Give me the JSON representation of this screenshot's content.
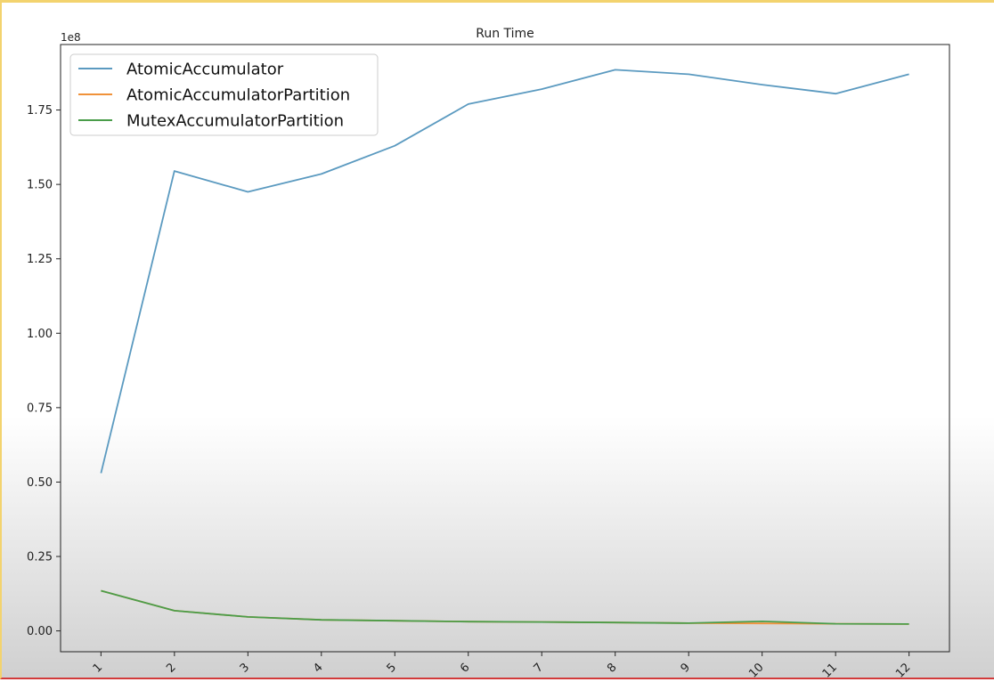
{
  "chart_data": {
    "type": "line",
    "title": "Run Time",
    "xlabel": "",
    "ylabel": "",
    "y_offset_label": "1e8",
    "x": [
      1,
      2,
      3,
      4,
      5,
      6,
      7,
      8,
      9,
      10,
      11,
      12
    ],
    "x_tick_labels": [
      "1",
      "2",
      "3",
      "4",
      "5",
      "6",
      "7",
      "8",
      "9",
      "10",
      "11",
      "12"
    ],
    "y_ticks": [
      0,
      0.25,
      0.5,
      0.75,
      1.0,
      1.25,
      1.5,
      1.75
    ],
    "y_tick_labels": [
      "0.00",
      "0.25",
      "0.50",
      "0.75",
      "1.00",
      "1.25",
      "1.50",
      "1.75"
    ],
    "y_scale": 100000000,
    "ylim": [
      -0.07,
      1.97
    ],
    "xlim": [
      0.45,
      12.55
    ],
    "grid": false,
    "legend_position": "top-left",
    "series": [
      {
        "name": "AtomicAccumulator",
        "color": "#5b9ac0",
        "values": [
          0.53,
          1.545,
          1.475,
          1.535,
          1.63,
          1.77,
          1.82,
          1.885,
          1.87,
          1.835,
          1.805,
          1.87
        ]
      },
      {
        "name": "AtomicAccumulatorPartition",
        "color": "#f0923a",
        "values": [
          0.135,
          0.068,
          0.047,
          0.037,
          0.034,
          0.031,
          0.03,
          0.028,
          0.026,
          0.025,
          0.024,
          0.023
        ]
      },
      {
        "name": "MutexAccumulatorPartition",
        "color": "#4a9d4a",
        "values": [
          0.135,
          0.068,
          0.047,
          0.037,
          0.034,
          0.031,
          0.03,
          0.028,
          0.026,
          0.032,
          0.024,
          0.023
        ]
      }
    ]
  }
}
